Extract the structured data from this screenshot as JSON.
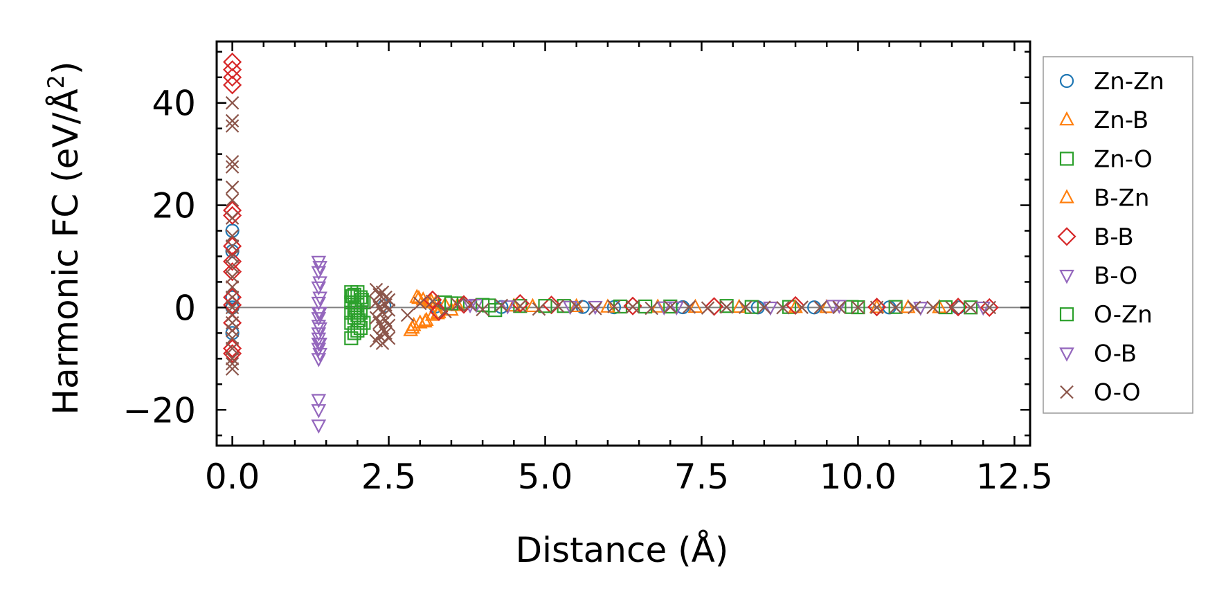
{
  "chart_data": {
    "type": "scatter",
    "title": "",
    "xlabel": "Distance (Å)",
    "ylabel": "Harmonic FC (eV/Å²)",
    "ylabel_main": "Harmonic FC (eV/Å",
    "ylabel_sup": "2",
    "ylabel_close": ")",
    "xlim": [
      -0.25,
      12.75
    ],
    "ylim": [
      -27,
      52
    ],
    "xticks": [
      0.0,
      2.5,
      5.0,
      7.5,
      10.0,
      12.5
    ],
    "xtick_labels": [
      "0.0",
      "2.5",
      "5.0",
      "7.5",
      "10.0",
      "12.5"
    ],
    "yticks": [
      -20,
      0,
      20,
      40
    ],
    "ytick_labels": [
      "−20",
      "0",
      "20",
      "40"
    ],
    "legend_position": "outside-right",
    "zero_line": true,
    "series": [
      {
        "name": "Zn-Zn",
        "marker": "circle",
        "color": "#1f77b4",
        "x": [
          0,
          0,
          0,
          0,
          0,
          2.43,
          3.25,
          4.3,
          5.6,
          6.1,
          7.2,
          8.4,
          9.3,
          10.5,
          11.6
        ],
        "y": [
          15,
          11,
          2,
          0,
          -5,
          0.3,
          0.2,
          0.1,
          0.1,
          0.05,
          0.05,
          0.02,
          0.02,
          0.01,
          0.01
        ]
      },
      {
        "name": "Zn-B",
        "marker": "triangle-up",
        "color": "#ff7f0e",
        "x": [
          2.85,
          2.9,
          2.95,
          3.0,
          3.05,
          3.1,
          3.15,
          3.2,
          3.25,
          3.3,
          3.4,
          3.5,
          4.5,
          5.5,
          6.8,
          8.1,
          9.5,
          10.3,
          11.3
        ],
        "y": [
          -4.5,
          -3.5,
          2.0,
          -3.0,
          1.5,
          -2.5,
          1.0,
          -1.5,
          0.8,
          -1.0,
          0.5,
          -0.5,
          0.3,
          0.2,
          0.1,
          0.05,
          0.02,
          0.01,
          0.0
        ]
      },
      {
        "name": "Zn-O",
        "marker": "square",
        "color": "#2ca02c",
        "x": [
          1.9,
          1.9,
          1.9,
          1.9,
          1.9,
          1.95,
          1.95,
          1.95,
          1.95,
          2.0,
          2.0,
          2.0,
          2.0,
          2.05,
          2.05,
          2.05,
          2.1,
          2.1,
          3.4,
          3.6,
          4.0,
          4.2,
          4.6,
          5.3,
          6.2,
          7.0,
          7.9,
          8.9,
          9.9,
          10.6,
          11.4
        ],
        "y": [
          3,
          1,
          -1,
          -3,
          -6,
          2.5,
          0,
          -2,
          -5,
          3,
          0.5,
          -1.5,
          -4.5,
          2,
          -1,
          -4,
          1,
          -3,
          1.0,
          0.8,
          0.5,
          -0.5,
          0.3,
          0.3,
          0.2,
          0.2,
          0.3,
          0.1,
          0.1,
          0.1,
          0.05
        ]
      },
      {
        "name": "B-Zn",
        "marker": "triangle-up",
        "color": "#ff7f0e",
        "x": [
          2.88,
          2.98,
          3.08,
          3.18,
          3.28,
          3.6,
          4.8,
          6.0,
          7.4,
          9.0,
          10.8
        ],
        "y": [
          -4.0,
          1.8,
          -2.8,
          1.2,
          -1.2,
          0.4,
          0.2,
          0.1,
          0.05,
          0.02,
          0.01
        ]
      },
      {
        "name": "B-B",
        "marker": "diamond",
        "color": "#d62728",
        "x": [
          0,
          0,
          0,
          0,
          0,
          0,
          0,
          0,
          0,
          0,
          0,
          0,
          0,
          0,
          3.2,
          3.3,
          3.7,
          4.6,
          5.1,
          6.4,
          7.7,
          9.0,
          10.3,
          11.6,
          12.1
        ],
        "y": [
          48,
          46.5,
          45,
          43.5,
          19,
          18,
          12,
          9,
          7,
          2,
          0.5,
          -3,
          -8,
          -9,
          1.5,
          -0.8,
          0.6,
          0.8,
          0.5,
          0.3,
          0.2,
          0.4,
          0.1,
          0.1,
          0.0
        ]
      },
      {
        "name": "B-O",
        "marker": "triangle-down",
        "color": "#9467bd",
        "x": [
          1.38,
          1.38,
          1.38,
          1.38,
          1.38,
          1.38,
          1.38,
          1.38,
          1.38,
          1.38,
          1.38,
          1.38,
          1.38,
          1.38,
          1.38,
          3.9,
          4.4,
          5.4,
          6.9,
          8.6,
          9.7,
          11.0
        ],
        "y": [
          9,
          7,
          4,
          1,
          -1,
          -2,
          -3.5,
          -5,
          -6,
          -7,
          -8,
          -10,
          -18,
          -20,
          -23,
          0.6,
          0.3,
          0.2,
          0.1,
          0.05,
          0.4,
          0.02
        ]
      },
      {
        "name": "O-Zn",
        "marker": "square",
        "color": "#2ca02c",
        "x": [
          1.92,
          1.97,
          2.02,
          2.07,
          3.5,
          4.1,
          5.0,
          6.6,
          8.3,
          10.0,
          11.8
        ],
        "y": [
          2.2,
          -0.5,
          -2.5,
          1.5,
          0.8,
          0.4,
          0.3,
          0.2,
          0.1,
          0.05,
          0.02
        ]
      },
      {
        "name": "O-B",
        "marker": "triangle-down",
        "color": "#9467bd",
        "x": [
          1.4,
          1.4,
          1.4,
          1.4,
          1.4,
          1.4,
          1.4,
          3.8,
          5.8,
          7.1,
          9.6,
          12.0
        ],
        "y": [
          8,
          5,
          2,
          -1,
          -4,
          -7,
          -9,
          0.5,
          0.2,
          0.1,
          0.4,
          0.05
        ]
      },
      {
        "name": "O-O",
        "marker": "x",
        "color": "#8c564b",
        "x": [
          0,
          0,
          0,
          0,
          0,
          0,
          0,
          0,
          0,
          0,
          0,
          0,
          0,
          0,
          0,
          0,
          0,
          0,
          0,
          0,
          0,
          0,
          0,
          0,
          2.3,
          2.3,
          2.3,
          2.3,
          2.35,
          2.35,
          2.35,
          2.35,
          2.4,
          2.4,
          2.4,
          2.4,
          2.45,
          2.45,
          2.45,
          2.45,
          2.5,
          2.5,
          2.5,
          2.5,
          2.8,
          3.0,
          3.2,
          3.4,
          3.6,
          3.8,
          4.0,
          4.3,
          4.6,
          4.9,
          5.2,
          5.5,
          5.8,
          6.1,
          6.4,
          6.7,
          7.0,
          7.3,
          7.6,
          7.9,
          8.2,
          8.5,
          8.8,
          9.1,
          9.4,
          9.7,
          10.0,
          10.3,
          10.6,
          10.9,
          11.2,
          11.5,
          11.8,
          12.1
        ],
        "y": [
          40,
          36.5,
          35.5,
          28.5,
          27.5,
          23.5,
          21,
          17.5,
          14,
          12,
          10,
          8,
          6,
          4,
          2,
          0,
          -1.5,
          -3,
          -4.5,
          -6,
          -8,
          -10,
          -11,
          -12,
          3.5,
          1,
          -2,
          -6.5,
          2.5,
          0,
          -3,
          -5.5,
          3,
          -1,
          -4,
          -7,
          2,
          0.5,
          -2.5,
          -5,
          1.5,
          -0.5,
          -3.5,
          -6,
          -1.5,
          0.8,
          1.2,
          -0.8,
          0.6,
          0.5,
          -0.4,
          0.4,
          0.3,
          -0.3,
          0.3,
          0.2,
          -0.2,
          0.2,
          0.15,
          -0.15,
          0.1,
          0.1,
          -0.1,
          0.1,
          0.05,
          0.05,
          -0.05,
          0.05,
          0.03,
          0.03,
          0.02,
          0.02,
          0.01,
          0.01,
          0.01,
          0.0,
          0.0,
          0.0
        ]
      }
    ]
  }
}
